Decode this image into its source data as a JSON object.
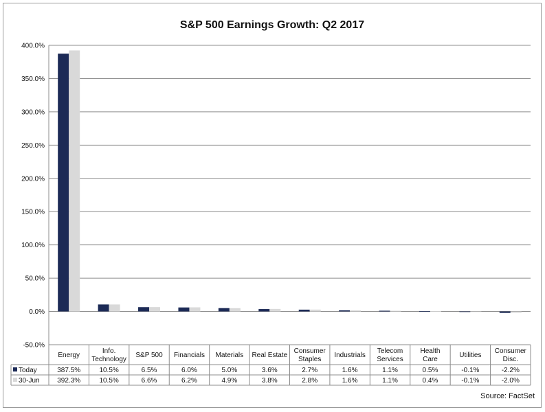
{
  "chart_data": {
    "type": "bar",
    "title": "S&P 500 Earnings Growth: Q2 2017",
    "source": "Source: FactSet",
    "categories": [
      [
        "Energy"
      ],
      [
        "Info.",
        "Technology"
      ],
      [
        "S&P 500"
      ],
      [
        "Financials"
      ],
      [
        "Materials"
      ],
      [
        "Real Estate"
      ],
      [
        "Consumer",
        "Staples"
      ],
      [
        "Industrials"
      ],
      [
        "Telecom",
        "Services"
      ],
      [
        "Health",
        "Care"
      ],
      [
        "Utilities"
      ],
      [
        "Consumer",
        "Disc."
      ]
    ],
    "series": [
      {
        "name": "Today",
        "color": "#1c2a56",
        "values": [
          387.5,
          10.5,
          6.5,
          6.0,
          5.0,
          3.6,
          2.7,
          1.6,
          1.1,
          0.5,
          -0.1,
          -2.2
        ],
        "labels": [
          "387.5%",
          "10.5%",
          "6.5%",
          "6.0%",
          "5.0%",
          "3.6%",
          "2.7%",
          "1.6%",
          "1.1%",
          "0.5%",
          "-0.1%",
          "-2.2%"
        ]
      },
      {
        "name": "30-Jun",
        "color": "#d9d9d9",
        "values": [
          392.3,
          10.5,
          6.6,
          6.2,
          4.9,
          3.8,
          2.8,
          1.6,
          1.1,
          0.4,
          -0.1,
          -2.0
        ],
        "labels": [
          "392.3%",
          "10.5%",
          "6.6%",
          "6.2%",
          "4.9%",
          "3.8%",
          "2.8%",
          "1.6%",
          "1.1%",
          "0.4%",
          "-0.1%",
          "-2.0%"
        ]
      }
    ],
    "yticks": [
      400,
      350,
      300,
      250,
      200,
      150,
      100,
      50,
      0,
      -50
    ],
    "ytick_labels": [
      "400.0%",
      "350.0%",
      "300.0%",
      "250.0%",
      "200.0%",
      "150.0%",
      "100.0%",
      "50.0%",
      "0.0%",
      "-50.0%"
    ],
    "ylim": [
      -50,
      400
    ],
    "grid": true,
    "legend": "data-table"
  }
}
